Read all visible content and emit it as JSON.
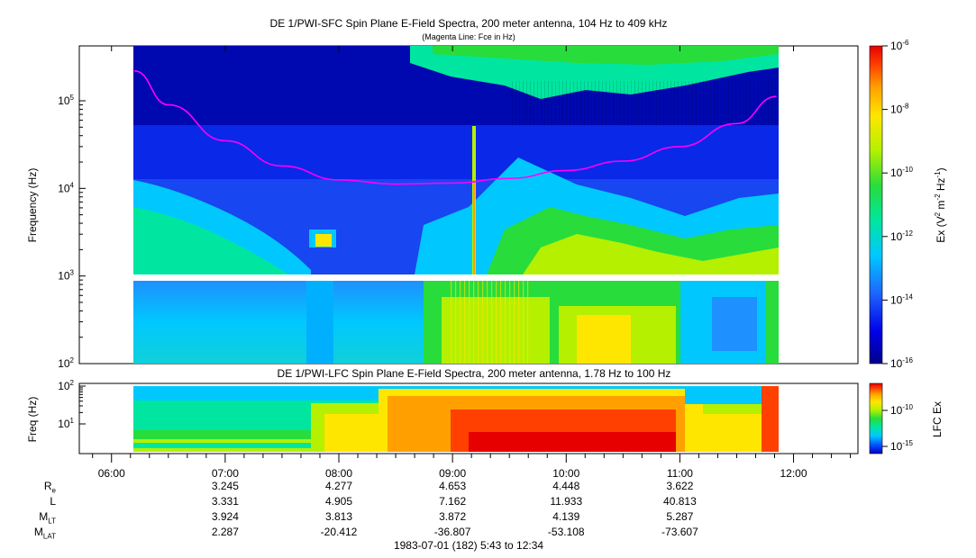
{
  "chart_data": [
    {
      "type": "heatmap",
      "title": "DE 1/PWI-SFC  Spin Plane E-Field Spectra, 200 meter antenna, 104 Hz to 409 kHz",
      "subtitle": "(Magenta Line: Fce in Hz)",
      "ylabel": "Frequency (Hz)",
      "yscale": "log",
      "ylim": [
        100,
        409000
      ],
      "yticks": [
        "10^2",
        "10^3",
        "10^4",
        "10^5"
      ],
      "x_range": [
        "05:43",
        "12:34"
      ],
      "data_range": [
        "06:12",
        "11:51"
      ],
      "gap_band_hz": [
        900,
        1000
      ],
      "colorbar": {
        "label": "Ex (V^2 m^-2 Hz^-1)",
        "scale": "log",
        "range": [
          1e-16,
          1e-06
        ],
        "ticks": [
          "10^-6",
          "10^-8",
          "10^-10",
          "10^-12",
          "10^-14",
          "10^-16"
        ],
        "colors": [
          "#00008c",
          "#0000e6",
          "#1e64ff",
          "#00c8ff",
          "#00e6a0",
          "#28dc3c",
          "#b4f000",
          "#ffe600",
          "#ffa000",
          "#ff4000",
          "#e60000"
        ]
      },
      "series": [
        {
          "name": "Fce in Hz",
          "color": "#ff00ff",
          "x": [
            "06:12",
            "06:30",
            "07:00",
            "07:30",
            "08:00",
            "08:30",
            "09:00",
            "09:30",
            "10:00",
            "10:30",
            "11:00",
            "11:30",
            "11:51"
          ],
          "y": [
            220000,
            90000,
            35000,
            18000,
            12500,
            11200,
            11500,
            13000,
            16000,
            20500,
            30000,
            55000,
            112000
          ]
        }
      ]
    },
    {
      "type": "heatmap",
      "title": "DE 1/PWI-LFC  Spin Plane E-Field Spectra, 200 meter antenna, 1.78 Hz to 100 Hz",
      "ylabel": "Freq (Hz)",
      "yscale": "log",
      "ylim": [
        1.78,
        100
      ],
      "yticks": [
        "10^1",
        "10^2"
      ],
      "colorbar": {
        "label": "LFC Ex",
        "scale": "log",
        "range": [
          1e-17,
          1e-08
        ],
        "ticks": [
          "10^-10",
          "10^-15"
        ],
        "colors": [
          "#0000c8",
          "#0050ff",
          "#00c8ff",
          "#00e6a0",
          "#28dc3c",
          "#b4f000",
          "#ffe600",
          "#ffa000",
          "#ff4000",
          "#e60000"
        ]
      }
    }
  ],
  "time_axis": {
    "ticks": [
      "06:00",
      "07:00",
      "08:00",
      "09:00",
      "10:00",
      "11:00",
      "12:00"
    ],
    "rows": [
      {
        "label": "R",
        "sub": "e",
        "values": [
          "3.245",
          "4.277",
          "4.653",
          "4.448",
          "3.622"
        ]
      },
      {
        "label": "L",
        "sub": "",
        "values": [
          "3.331",
          "4.905",
          "7.162",
          "11.933",
          "40.813"
        ]
      },
      {
        "label": "M",
        "sub": "LT",
        "values": [
          "3.924",
          "3.813",
          "3.872",
          "4.139",
          "5.287"
        ]
      },
      {
        "label": "M",
        "sub": "LAT",
        "values": [
          "2.287",
          "-20.412",
          "-36.807",
          "-53.108",
          "-73.607"
        ]
      }
    ],
    "footer": "1983-07-01 (182) 5:43 to 12:34"
  }
}
